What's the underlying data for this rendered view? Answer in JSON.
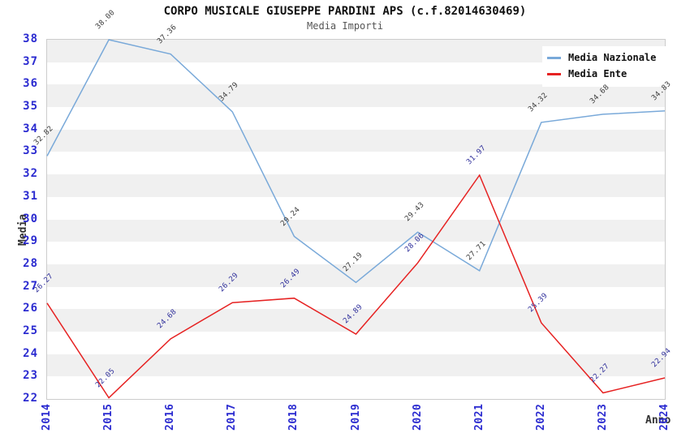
{
  "chart_data": {
    "type": "line",
    "title": "CORPO MUSICALE GIUSEPPE PARDINI APS (c.f.82014630469)",
    "subtitle": "Media Importi",
    "xlabel": "Anno",
    "ylabel": "Media",
    "x": [
      "2014",
      "2015",
      "2016",
      "2017",
      "2018",
      "2019",
      "2020",
      "2021",
      "2022",
      "2023",
      "2024"
    ],
    "ylim": [
      22,
      38
    ],
    "y_tick_step": 1,
    "grid": "alternating-horizontal-bands",
    "band_color": "#f0f0f0",
    "border_color": "#cccccc",
    "tick_label_color": "#2b2bd0",
    "legend_position": "top-right-inside",
    "series": [
      {
        "name": "Media Nazionale",
        "color": "#79a9d9",
        "label_color": "#3c3c3c",
        "values": [
          32.82,
          38.0,
          37.36,
          34.79,
          29.24,
          27.19,
          29.43,
          27.71,
          34.32,
          34.68,
          34.83
        ],
        "point_labels": [
          "32.82",
          "38.00",
          "37.36",
          "34.79",
          "29.24",
          "27.19",
          "29.43",
          "27.71",
          "34.32",
          "34.68",
          "34.83"
        ]
      },
      {
        "name": "Media Ente",
        "color": "#e62222",
        "label_color": "#31319c",
        "values": [
          26.27,
          22.05,
          24.68,
          26.29,
          26.49,
          24.89,
          28.06,
          31.97,
          25.39,
          22.27,
          22.94
        ],
        "point_labels": [
          "26.27",
          "22.05",
          "24.68",
          "26.29",
          "26.49",
          "24.89",
          "28.06",
          "31.97",
          "25.39",
          "22.27",
          "22.94"
        ]
      }
    ]
  }
}
